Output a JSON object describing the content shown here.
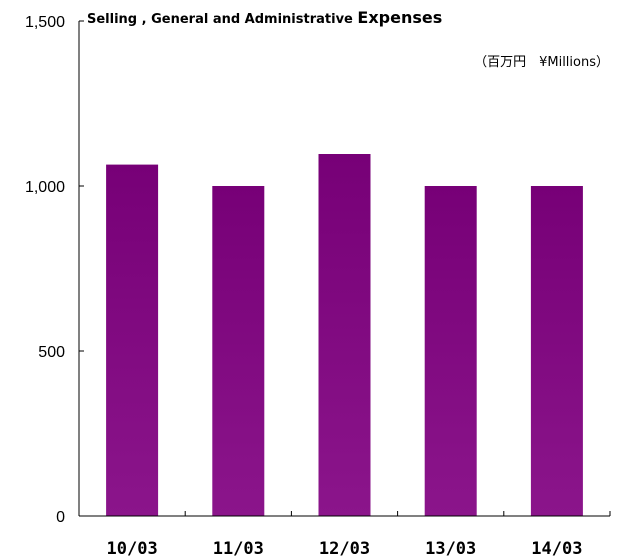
{
  "chart_data": {
    "type": "bar",
    "title_part1": "Selling , General and Administrative ",
    "title_part2": "Expenses",
    "unit_label": "（百万円　¥Millions）",
    "categories": [
      "10/03",
      "11/03",
      "12/03",
      "13/03",
      "14/03"
    ],
    "values": [
      1065,
      1000,
      1097,
      1000,
      1000
    ],
    "ylim": [
      0,
      1500
    ],
    "yticks": [
      0,
      500,
      1000,
      1500
    ],
    "ytick_labels": [
      "0",
      "500",
      "1,000",
      "1,500"
    ],
    "grid": false,
    "legend": "none",
    "colors": {
      "bar_top": "#770077",
      "bar_bottom": "#8b158b",
      "axis": "#000000"
    }
  }
}
